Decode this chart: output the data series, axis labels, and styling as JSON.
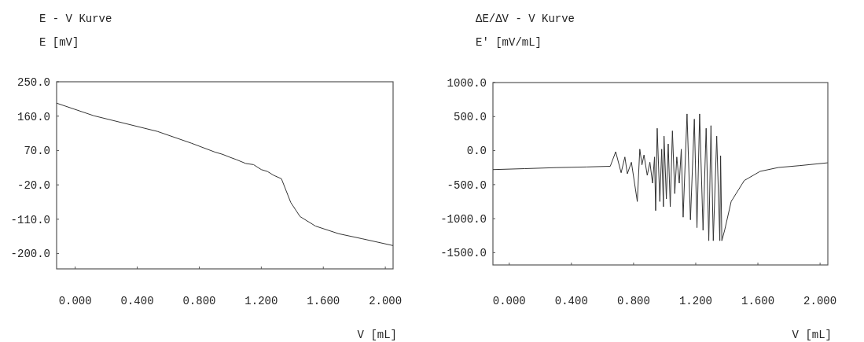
{
  "chart_data": [
    {
      "type": "line",
      "title": "E - V Kurve",
      "ylabel": "E [mV]",
      "xlabel": "V [mL]",
      "color": "#333333",
      "marker": "none",
      "grid": false,
      "x": [
        -0.12,
        0.12,
        0.53,
        0.75,
        0.9,
        0.95,
        1.0,
        1.04,
        1.1,
        1.15,
        1.2,
        1.24,
        1.28,
        1.33,
        1.39,
        1.45,
        1.55,
        1.7,
        1.85,
        2.05
      ],
      "values": [
        194,
        161,
        120,
        89,
        66,
        60,
        52,
        46,
        36,
        33,
        20,
        15,
        5,
        -4,
        -66,
        -103,
        -128,
        -148,
        -161,
        -179
      ],
      "xlim": [
        -0.12,
        2.05
      ],
      "ylim": [
        -240,
        250
      ],
      "xticks": [
        {
          "value": 0,
          "label": "0.000"
        },
        {
          "value": 0.4,
          "label": "0.400"
        },
        {
          "value": 0.8,
          "label": "0.800"
        },
        {
          "value": 1.2,
          "label": "1.200"
        },
        {
          "value": 1.6,
          "label": "1.600"
        },
        {
          "value": 2,
          "label": "2.000"
        }
      ],
      "yticks": [
        {
          "value": 250,
          "label": "250.0"
        },
        {
          "value": 160,
          "label": "160.0"
        },
        {
          "value": 70,
          "label": "70.0"
        },
        {
          "value": -20,
          "label": "-20.0"
        },
        {
          "value": -110,
          "label": "-110.0"
        },
        {
          "value": -200,
          "label": "-200.0"
        }
      ]
    },
    {
      "type": "line",
      "title": "ΔE/ΔV - V Kurve",
      "ylabel": "E' [mV/mL]",
      "xlabel": "V [mL]",
      "color": "#333333",
      "marker": "none",
      "grid": false,
      "x": [
        -0.105,
        0.1,
        0.3,
        0.5,
        0.65,
        0.685,
        0.72,
        0.744,
        0.76,
        0.786,
        0.824,
        0.84,
        0.854,
        0.867,
        0.888,
        0.905,
        0.922,
        0.935,
        0.942,
        0.952,
        0.969,
        0.981,
        0.992,
        0.996,
        1.011,
        1.023,
        1.036,
        1.05,
        1.065,
        1.078,
        1.094,
        1.107,
        1.119,
        1.144,
        1.166,
        1.191,
        1.208,
        1.225,
        1.247,
        1.267,
        1.284,
        1.298,
        1.313,
        1.335,
        1.355,
        1.36,
        1.368,
        1.386,
        1.428,
        1.512,
        1.614,
        1.732,
        1.867,
        2.049
      ],
      "values": [
        -279,
        -265,
        -250,
        -240,
        -230,
        -17,
        -325,
        -94,
        -340,
        -171,
        -748,
        21,
        -209,
        -64,
        -363,
        -171,
        -478,
        -94,
        -882,
        328,
        -748,
        21,
        -824,
        213,
        -709,
        98,
        -824,
        290,
        -632,
        -94,
        -478,
        21,
        -978,
        539,
        -1017,
        463,
        -1132,
        539,
        -1170,
        328,
        -1324,
        367,
        -1324,
        213,
        -1324,
        -75,
        -1324,
        -1170,
        -748,
        -440,
        -305,
        -248,
        -221,
        -179
      ],
      "xlim": [
        -0.105,
        2.05
      ],
      "ylim": [
        -1680,
        1000
      ],
      "xticks": [
        {
          "value": 0,
          "label": "0.000"
        },
        {
          "value": 0.4,
          "label": "0.400"
        },
        {
          "value": 0.8,
          "label": "0.800"
        },
        {
          "value": 1.2,
          "label": "1.200"
        },
        {
          "value": 1.6,
          "label": "1.600"
        },
        {
          "value": 2,
          "label": "2.000"
        }
      ],
      "yticks": [
        {
          "value": 1000,
          "label": "1000.0"
        },
        {
          "value": 500,
          "label": "500.0"
        },
        {
          "value": 0,
          "label": "0.0"
        },
        {
          "value": -500,
          "label": "-500.0"
        },
        {
          "value": -1000,
          "label": "-1000.0"
        },
        {
          "value": -1500,
          "label": "-1500.0"
        }
      ]
    }
  ]
}
